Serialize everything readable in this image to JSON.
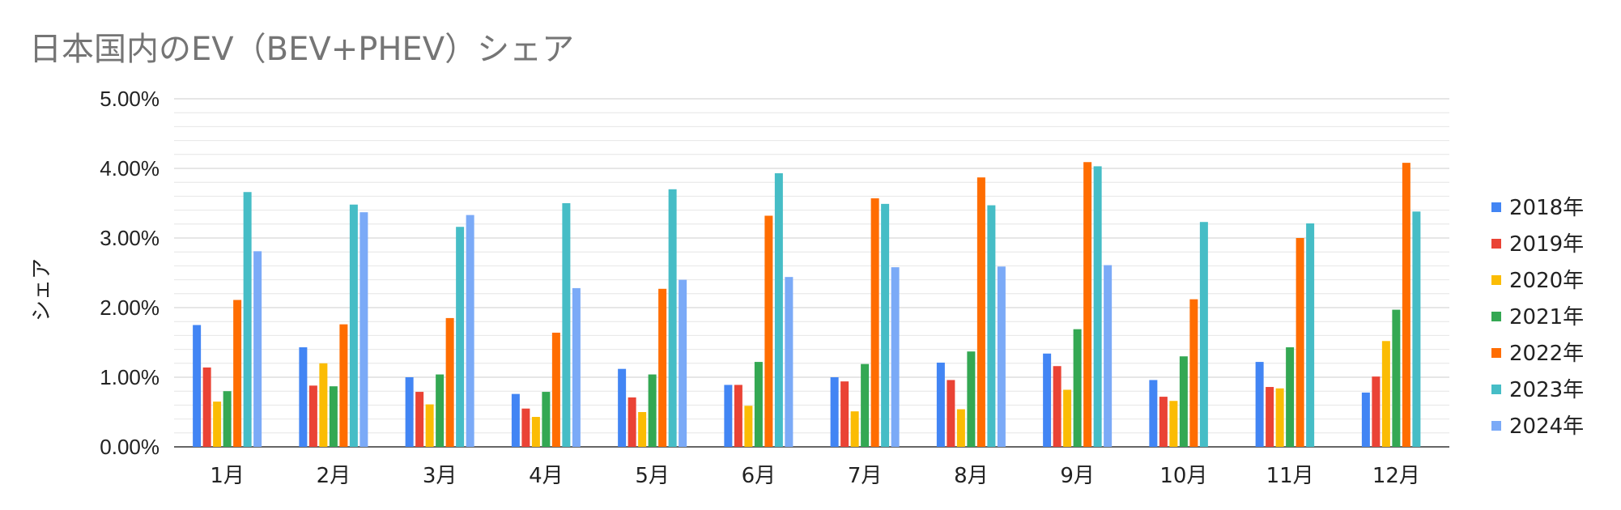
{
  "chart_data": {
    "type": "bar",
    "title": "日本国内のEV（BEV+PHEV）シェア",
    "xlabel": "",
    "ylabel": "シェア",
    "ylim": [
      0,
      0.05
    ],
    "y_ticks": [
      "0.00%",
      "1.00%",
      "2.00%",
      "3.00%",
      "4.00%",
      "5.00%"
    ],
    "grid": true,
    "legend_position": "right",
    "categories": [
      "1月",
      "2月",
      "3月",
      "4月",
      "5月",
      "6月",
      "7月",
      "8月",
      "9月",
      "10月",
      "11月",
      "12月"
    ],
    "series": [
      {
        "name": "2018年",
        "color": "#4285f4",
        "values": [
          0.0175,
          0.0143,
          0.01,
          0.0076,
          0.0112,
          0.0089,
          0.01,
          0.0121,
          0.0134,
          0.0096,
          0.0122,
          0.0078
        ]
      },
      {
        "name": "2019年",
        "color": "#ea4335",
        "values": [
          0.0114,
          0.0088,
          0.0079,
          0.0055,
          0.0071,
          0.0089,
          0.0094,
          0.0096,
          0.0116,
          0.0072,
          0.0086,
          0.0101
        ]
      },
      {
        "name": "2020年",
        "color": "#fbbc04",
        "values": [
          0.0065,
          0.012,
          0.0061,
          0.0043,
          0.005,
          0.0059,
          0.0051,
          0.0054,
          0.0082,
          0.0066,
          0.0084,
          0.0152
        ]
      },
      {
        "name": "2021年",
        "color": "#34a853",
        "values": [
          0.008,
          0.0087,
          0.0104,
          0.0079,
          0.0104,
          0.0122,
          0.0119,
          0.0137,
          0.0169,
          0.013,
          0.0143,
          0.0197
        ]
      },
      {
        "name": "2022年",
        "color": "#ff6d01",
        "values": [
          0.0211,
          0.0176,
          0.0185,
          0.0164,
          0.0227,
          0.0332,
          0.0357,
          0.0387,
          0.0409,
          0.0212,
          0.03,
          0.0408
        ]
      },
      {
        "name": "2023年",
        "color": "#46bdc6",
        "values": [
          0.0366,
          0.0348,
          0.0316,
          0.035,
          0.037,
          0.0393,
          0.0349,
          0.0347,
          0.0403,
          0.0323,
          0.0321,
          0.0338
        ]
      },
      {
        "name": "2024年",
        "color": "#7baaf7",
        "values": [
          0.0281,
          0.0337,
          0.0333,
          0.0228,
          0.024,
          0.0244,
          0.0258,
          0.0259,
          0.0261,
          null,
          null,
          null
        ]
      }
    ]
  }
}
